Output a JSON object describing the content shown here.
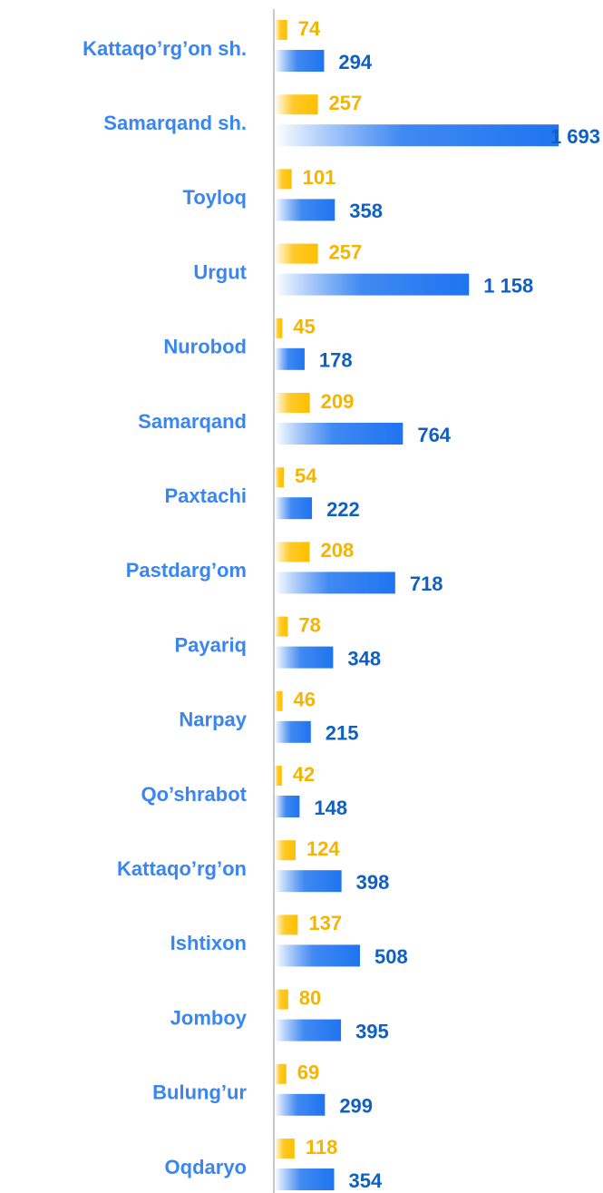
{
  "chart_data": {
    "type": "hbar",
    "categories": [
      "Kattaqo’rg’on sh.",
      "Samarqand sh.",
      "Toyloq",
      "Urgut",
      "Nurobod",
      "Samarqand",
      "Paxtachi",
      "Pastdarg’om",
      "Payariq",
      "Narpay",
      "Qo’shrabot",
      "Kattaqo’rg’on",
      "Ishtixon",
      "Jomboy",
      "Bulung’ur",
      "Oqdaryo"
    ],
    "series": [
      {
        "color": "#ffbf00",
        "values": [
          74,
          257,
          101,
          257,
          45,
          209,
          54,
          208,
          78,
          46,
          42,
          124,
          137,
          80,
          69,
          118
        ]
      },
      {
        "color": "#1f74f0",
        "values": [
          294,
          1693,
          358,
          1158,
          178,
          764,
          222,
          718,
          348,
          215,
          148,
          398,
          508,
          395,
          299,
          354
        ],
        "value_labels": [
          "294",
          "1 693",
          "358",
          "1 158",
          "178",
          "764",
          "222",
          "718",
          "348",
          "215",
          "148",
          "398",
          "508",
          "395",
          "299",
          "354"
        ]
      }
    ],
    "xlim": [
      0,
      1800
    ]
  }
}
